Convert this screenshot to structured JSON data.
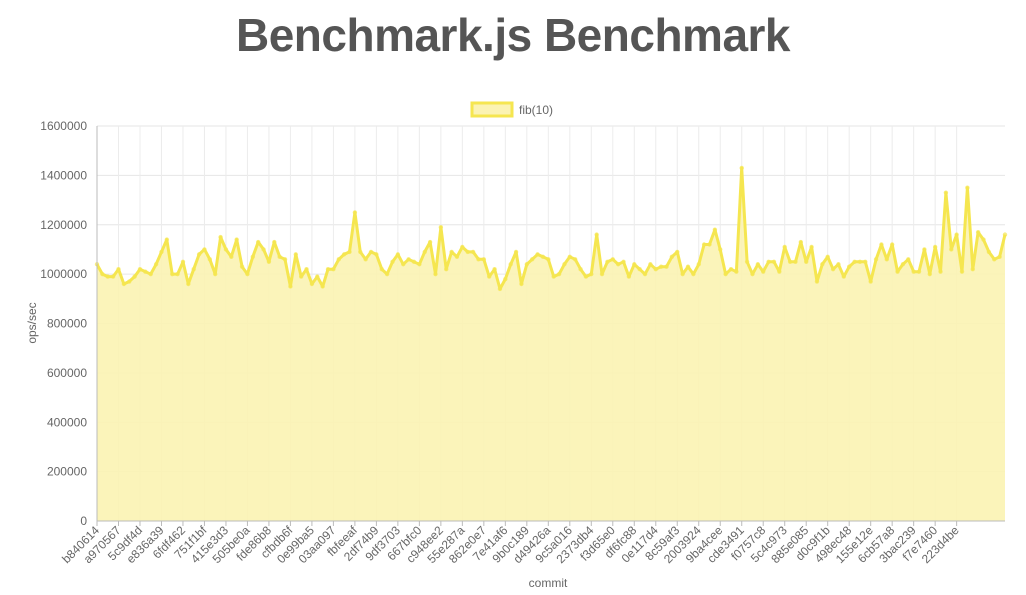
{
  "page": {
    "title": "Benchmark.js Benchmark"
  },
  "chart_data": {
    "type": "line",
    "fill": true,
    "xlabel": "commit",
    "ylabel": "ops/sec",
    "ylim": [
      0,
      1600000
    ],
    "yticks": [
      0,
      200000,
      400000,
      600000,
      800000,
      1000000,
      1200000,
      1400000,
      1600000
    ],
    "grid": true,
    "legend": "top-center",
    "line_color": "#f5e650",
    "fill_color": "#fbf3b3",
    "series": [
      {
        "name": "fib(10)",
        "values": [
          1040000,
          1000000,
          990000,
          990000,
          1020000,
          960000,
          970000,
          990000,
          1020000,
          1010000,
          1000000,
          1040000,
          1090000,
          1140000,
          1000000,
          1000000,
          1050000,
          960000,
          1020000,
          1080000,
          1100000,
          1060000,
          1000000,
          1150000,
          1100000,
          1070000,
          1140000,
          1030000,
          1000000,
          1070000,
          1130000,
          1100000,
          1050000,
          1130000,
          1070000,
          1060000,
          950000,
          1080000,
          990000,
          1020000,
          960000,
          990000,
          950000,
          1020000,
          1020000,
          1060000,
          1080000,
          1090000,
          1250000,
          1090000,
          1060000,
          1090000,
          1080000,
          1020000,
          1000000,
          1050000,
          1080000,
          1040000,
          1060000,
          1050000,
          1040000,
          1090000,
          1130000,
          1000000,
          1190000,
          1020000,
          1090000,
          1070000,
          1110000,
          1090000,
          1090000,
          1060000,
          1060000,
          990000,
          1020000,
          940000,
          980000,
          1040000,
          1090000,
          960000,
          1040000,
          1060000,
          1080000,
          1070000,
          1060000,
          990000,
          1000000,
          1040000,
          1070000,
          1060000,
          1020000,
          990000,
          1000000,
          1160000,
          1000000,
          1050000,
          1060000,
          1040000,
          1050000,
          990000,
          1040000,
          1020000,
          1000000,
          1040000,
          1020000,
          1030000,
          1030000,
          1070000,
          1090000,
          1000000,
          1030000,
          1000000,
          1040000,
          1120000,
          1120000,
          1180000,
          1100000,
          1000000,
          1020000,
          1010000,
          1430000,
          1050000,
          1000000,
          1040000,
          1010000,
          1050000,
          1050000,
          1010000,
          1110000,
          1050000,
          1050000,
          1130000,
          1050000,
          1110000,
          970000,
          1040000,
          1070000,
          1020000,
          1040000,
          990000,
          1030000,
          1050000,
          1050000,
          1050000,
          970000,
          1060000,
          1120000,
          1060000,
          1120000,
          1010000,
          1040000,
          1060000,
          1010000,
          1010000,
          1100000,
          1000000,
          1110000,
          1010000,
          1330000,
          1100000,
          1160000,
          1010000,
          1350000,
          1020000,
          1170000,
          1140000,
          1090000,
          1060000,
          1070000,
          1160000
        ]
      }
    ],
    "tick_labels": [
      "b840614",
      "a970567",
      "5c9df4d",
      "e836a39",
      "6fdf462",
      "751f1bf",
      "415e3d3",
      "505be0a",
      "fde86b8",
      "cfbdb6f",
      "0e99ba5",
      "03aa097",
      "fbfeeaf",
      "2df74b9",
      "9df3703",
      "667bfc0",
      "c948ee2",
      "55e287a",
      "862e0e7",
      "7e41af6",
      "9b0c189",
      "d49426a",
      "9c5a016",
      "2373db4",
      "f3d65e0",
      "df6fc88",
      "0e117d4",
      "8c59af3",
      "2003924",
      "9ba4cee",
      "cde3491",
      "f0757c8",
      "5c4c973",
      "885e085",
      "d0c9f1b",
      "498ec48",
      "155e12e",
      "6cb57a8",
      "3bac239",
      "f7e7460",
      "223d4be"
    ]
  }
}
